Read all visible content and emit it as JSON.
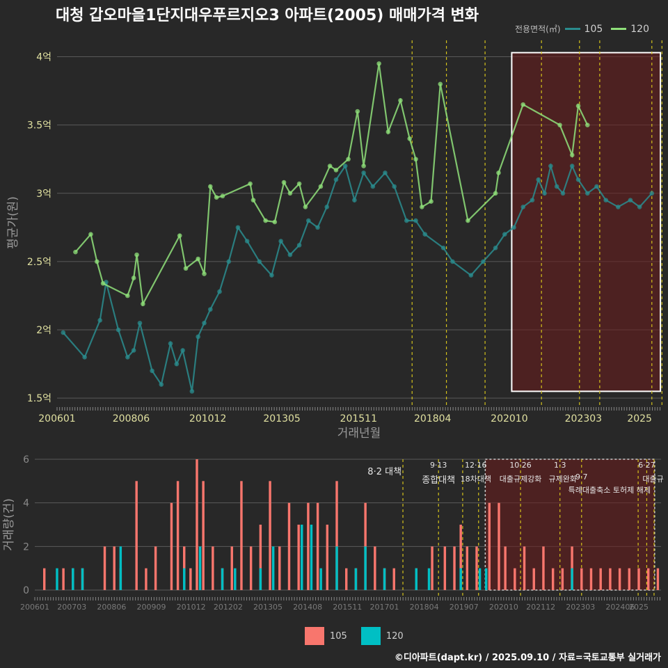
{
  "title": "대청 갑오마을1단지대우푸르지오3 아파트(2005) 매매가격 변화",
  "legend": {
    "title": "전용면적(㎡)",
    "items": [
      {
        "name": "105",
        "color": "#2a8c8e"
      },
      {
        "name": "120",
        "color": "#8fe07a"
      }
    ]
  },
  "bottom_legend": [
    {
      "name": "105",
      "color": "#f8766d"
    },
    {
      "name": "120",
      "color": "#00bfc4"
    }
  ],
  "footer": "©디아파트(dapt.kr) / 2025.09.10 / 자료=국토교통부 실거래가",
  "colors": {
    "c105_line": "#2a8c8e",
    "c120_line": "#8fe07a",
    "bar105": "#f8766d",
    "bar120": "#00bfc4",
    "policy": "#d4c21b",
    "highlight": "#6b1c1c"
  },
  "chart_data": [
    {
      "type": "line",
      "title": "대청 갑오마을1단지대우푸르지오3 아파트(2005) 매매가격 변화",
      "xlabel": "거래년월",
      "ylabel": "평균가(원)",
      "x_ticks": [
        "200601",
        "200806",
        "201012",
        "201305",
        "201511",
        "201804",
        "202010",
        "202303",
        "2025"
      ],
      "y_ticks": [
        "1.5억",
        "2억",
        "2.5억",
        "3억",
        "3.5억",
        "4억"
      ],
      "ylim": [
        1.45,
        4.12
      ],
      "xlim": [
        2006.0,
        2025.7
      ],
      "y_unit": "억",
      "highlight_range": [
        2020.83,
        2025.68
      ],
      "policy_dates": [
        2017.58,
        2018.7,
        2019.96,
        2021.8,
        2023.04,
        2023.7,
        2025.4,
        2025.73
      ],
      "series": [
        {
          "name": "105",
          "values": [
            [
              2006.2,
              1.98
            ],
            [
              2006.9,
              1.8
            ],
            [
              2007.4,
              2.07
            ],
            [
              2007.6,
              2.35
            ],
            [
              2008.0,
              2.0
            ],
            [
              2008.3,
              1.8
            ],
            [
              2008.5,
              1.85
            ],
            [
              2008.7,
              2.05
            ],
            [
              2009.1,
              1.7
            ],
            [
              2009.4,
              1.6
            ],
            [
              2009.7,
              1.9
            ],
            [
              2009.9,
              1.75
            ],
            [
              2010.1,
              1.85
            ],
            [
              2010.4,
              1.55
            ],
            [
              2010.6,
              1.95
            ],
            [
              2010.8,
              2.05
            ],
            [
              2011.0,
              2.15
            ],
            [
              2011.3,
              2.28
            ],
            [
              2011.6,
              2.5
            ],
            [
              2011.9,
              2.75
            ],
            [
              2012.2,
              2.65
            ],
            [
              2012.6,
              2.5
            ],
            [
              2013.0,
              2.4
            ],
            [
              2013.3,
              2.65
            ],
            [
              2013.6,
              2.55
            ],
            [
              2013.9,
              2.62
            ],
            [
              2014.2,
              2.8
            ],
            [
              2014.5,
              2.75
            ],
            [
              2014.8,
              2.9
            ],
            [
              2015.1,
              3.1
            ],
            [
              2015.4,
              3.2
            ],
            [
              2015.7,
              2.95
            ],
            [
              2016.0,
              3.15
            ],
            [
              2016.3,
              3.05
            ],
            [
              2016.7,
              3.15
            ],
            [
              2017.0,
              3.05
            ],
            [
              2017.4,
              2.8
            ],
            [
              2017.7,
              2.8
            ],
            [
              2018.0,
              2.7
            ],
            [
              2018.6,
              2.6
            ],
            [
              2018.9,
              2.5
            ],
            [
              2019.5,
              2.4
            ],
            [
              2019.9,
              2.5
            ],
            [
              2020.3,
              2.6
            ],
            [
              2020.6,
              2.7
            ],
            [
              2020.9,
              2.75
            ],
            [
              2021.2,
              2.9
            ],
            [
              2021.5,
              2.95
            ],
            [
              2021.7,
              3.1
            ],
            [
              2021.9,
              3.0
            ],
            [
              2022.1,
              3.2
            ],
            [
              2022.3,
              3.05
            ],
            [
              2022.5,
              3.0
            ],
            [
              2022.8,
              3.2
            ],
            [
              2023.0,
              3.1
            ],
            [
              2023.3,
              3.0
            ],
            [
              2023.6,
              3.05
            ],
            [
              2023.9,
              2.95
            ],
            [
              2024.3,
              2.9
            ],
            [
              2024.7,
              2.95
            ],
            [
              2025.0,
              2.9
            ],
            [
              2025.4,
              3.0
            ]
          ]
        },
        {
          "name": "120",
          "values": [
            [
              2006.6,
              2.57
            ],
            [
              2007.1,
              2.7
            ],
            [
              2007.3,
              2.5
            ],
            [
              2007.5,
              2.34
            ],
            [
              2008.3,
              2.25
            ],
            [
              2008.5,
              2.38
            ],
            [
              2008.6,
              2.55
            ],
            [
              2008.8,
              2.19
            ],
            [
              2010.0,
              2.69
            ],
            [
              2010.2,
              2.45
            ],
            [
              2010.6,
              2.52
            ],
            [
              2010.8,
              2.41
            ],
            [
              2011.0,
              3.05
            ],
            [
              2011.2,
              2.97
            ],
            [
              2011.4,
              2.98
            ],
            [
              2012.3,
              3.07
            ],
            [
              2012.4,
              2.95
            ],
            [
              2012.8,
              2.8
            ],
            [
              2013.1,
              2.79
            ],
            [
              2013.4,
              3.08
            ],
            [
              2013.6,
              3.0
            ],
            [
              2013.9,
              3.07
            ],
            [
              2014.1,
              2.9
            ],
            [
              2014.6,
              3.05
            ],
            [
              2014.9,
              3.2
            ],
            [
              2015.1,
              3.17
            ],
            [
              2015.5,
              3.25
            ],
            [
              2015.8,
              3.6
            ],
            [
              2016.0,
              3.2
            ],
            [
              2016.5,
              3.95
            ],
            [
              2016.8,
              3.45
            ],
            [
              2017.2,
              3.68
            ],
            [
              2017.5,
              3.4
            ],
            [
              2017.7,
              3.25
            ],
            [
              2017.9,
              2.9
            ],
            [
              2018.2,
              2.94
            ],
            [
              2018.5,
              3.8
            ],
            [
              2019.4,
              2.8
            ],
            [
              2020.3,
              3.0
            ],
            [
              2020.4,
              3.15
            ],
            [
              2021.2,
              3.65
            ],
            [
              2022.4,
              3.5
            ],
            [
              2022.8,
              3.28
            ],
            [
              2023.0,
              3.64
            ],
            [
              2023.3,
              3.5
            ]
          ]
        }
      ]
    },
    {
      "type": "bar",
      "xlabel": "",
      "ylabel": "거래량(건)",
      "x_ticks": [
        "200601",
        "200703",
        "200806",
        "200909",
        "201012",
        "201202",
        "201305",
        "201408",
        "201511",
        "201701",
        "201804",
        "201907",
        "202010",
        "202112",
        "202303",
        "202406",
        "2025"
      ],
      "y_ticks": [
        "0",
        "2",
        "4",
        "6"
      ],
      "ylim": [
        0,
        6
      ],
      "xlim": [
        2006.0,
        2025.7
      ],
      "highlight_range": [
        2020.17,
        2025.5
      ],
      "policy_dates": [
        2017.58,
        2018.7,
        2019.46,
        2019.96,
        2021.28,
        2022.52,
        2023.2,
        2024.98,
        2025.25,
        2025.48
      ],
      "annotations": [
        {
          "date": "8·2",
          "text": "8·2 대책"
        },
        {
          "date": "9·13",
          "text": "종합대책"
        },
        {
          "date": "12·16",
          "text": "18차대책"
        },
        {
          "date": "10·26",
          "text": "대출규제강화"
        },
        {
          "date": "1·3",
          "text": "규제완화"
        },
        {
          "date": "9·7",
          "text": "특례대출축소 토허제 해제"
        },
        {
          "date": "6·27",
          "text": "대출규"
        }
      ],
      "series": [
        {
          "name": "105",
          "values": [
            [
              2006.3,
              1
            ],
            [
              2006.9,
              1
            ],
            [
              2007.2,
              1
            ],
            [
              2007.5,
              1
            ],
            [
              2008.2,
              2
            ],
            [
              2008.5,
              2
            ],
            [
              2008.7,
              1
            ],
            [
              2009.2,
              5
            ],
            [
              2009.5,
              1
            ],
            [
              2009.8,
              2
            ],
            [
              2010.3,
              4
            ],
            [
              2010.5,
              5
            ],
            [
              2010.7,
              2
            ],
            [
              2010.9,
              1
            ],
            [
              2011.1,
              6
            ],
            [
              2011.3,
              5
            ],
            [
              2011.6,
              2
            ],
            [
              2011.9,
              1
            ],
            [
              2012.2,
              2
            ],
            [
              2012.5,
              5
            ],
            [
              2012.8,
              2
            ],
            [
              2013.1,
              3
            ],
            [
              2013.4,
              5
            ],
            [
              2013.7,
              2
            ],
            [
              2014.0,
              4
            ],
            [
              2014.3,
              3
            ],
            [
              2014.6,
              4
            ],
            [
              2014.9,
              4
            ],
            [
              2015.2,
              3
            ],
            [
              2015.5,
              5
            ],
            [
              2015.8,
              1
            ],
            [
              2016.1,
              1
            ],
            [
              2016.4,
              4
            ],
            [
              2016.7,
              2
            ],
            [
              2017.0,
              1
            ],
            [
              2017.3,
              1
            ],
            [
              2018.0,
              1
            ],
            [
              2018.5,
              2
            ],
            [
              2018.9,
              2
            ],
            [
              2019.2,
              2
            ],
            [
              2019.4,
              3
            ],
            [
              2019.6,
              2
            ],
            [
              2019.9,
              2
            ],
            [
              2020.3,
              4
            ],
            [
              2020.6,
              4
            ],
            [
              2020.8,
              2
            ],
            [
              2021.1,
              1
            ],
            [
              2021.4,
              2
            ],
            [
              2021.7,
              1
            ],
            [
              2022.0,
              2
            ],
            [
              2022.3,
              1
            ],
            [
              2022.6,
              1
            ],
            [
              2022.9,
              2
            ],
            [
              2023.2,
              1
            ],
            [
              2023.5,
              1
            ],
            [
              2023.8,
              1
            ],
            [
              2024.1,
              1
            ],
            [
              2024.4,
              1
            ],
            [
              2024.7,
              1
            ],
            [
              2025.0,
              1
            ],
            [
              2025.3,
              1
            ],
            [
              2025.6,
              1
            ]
          ]
        },
        {
          "name": "120",
          "values": [
            [
              2006.7,
              1
            ],
            [
              2007.2,
              1
            ],
            [
              2007.5,
              1
            ],
            [
              2008.7,
              2
            ],
            [
              2010.7,
              1
            ],
            [
              2011.2,
              2
            ],
            [
              2011.9,
              1
            ],
            [
              2012.3,
              1
            ],
            [
              2013.1,
              1
            ],
            [
              2013.5,
              2
            ],
            [
              2014.4,
              3
            ],
            [
              2014.7,
              3
            ],
            [
              2015.0,
              1
            ],
            [
              2015.5,
              2
            ],
            [
              2016.1,
              1
            ],
            [
              2016.4,
              2
            ],
            [
              2017.0,
              1
            ],
            [
              2018.0,
              1
            ],
            [
              2018.4,
              1
            ],
            [
              2019.4,
              1
            ],
            [
              2020.0,
              1
            ],
            [
              2020.2,
              1
            ],
            [
              2022.9,
              1
            ]
          ]
        }
      ]
    }
  ]
}
